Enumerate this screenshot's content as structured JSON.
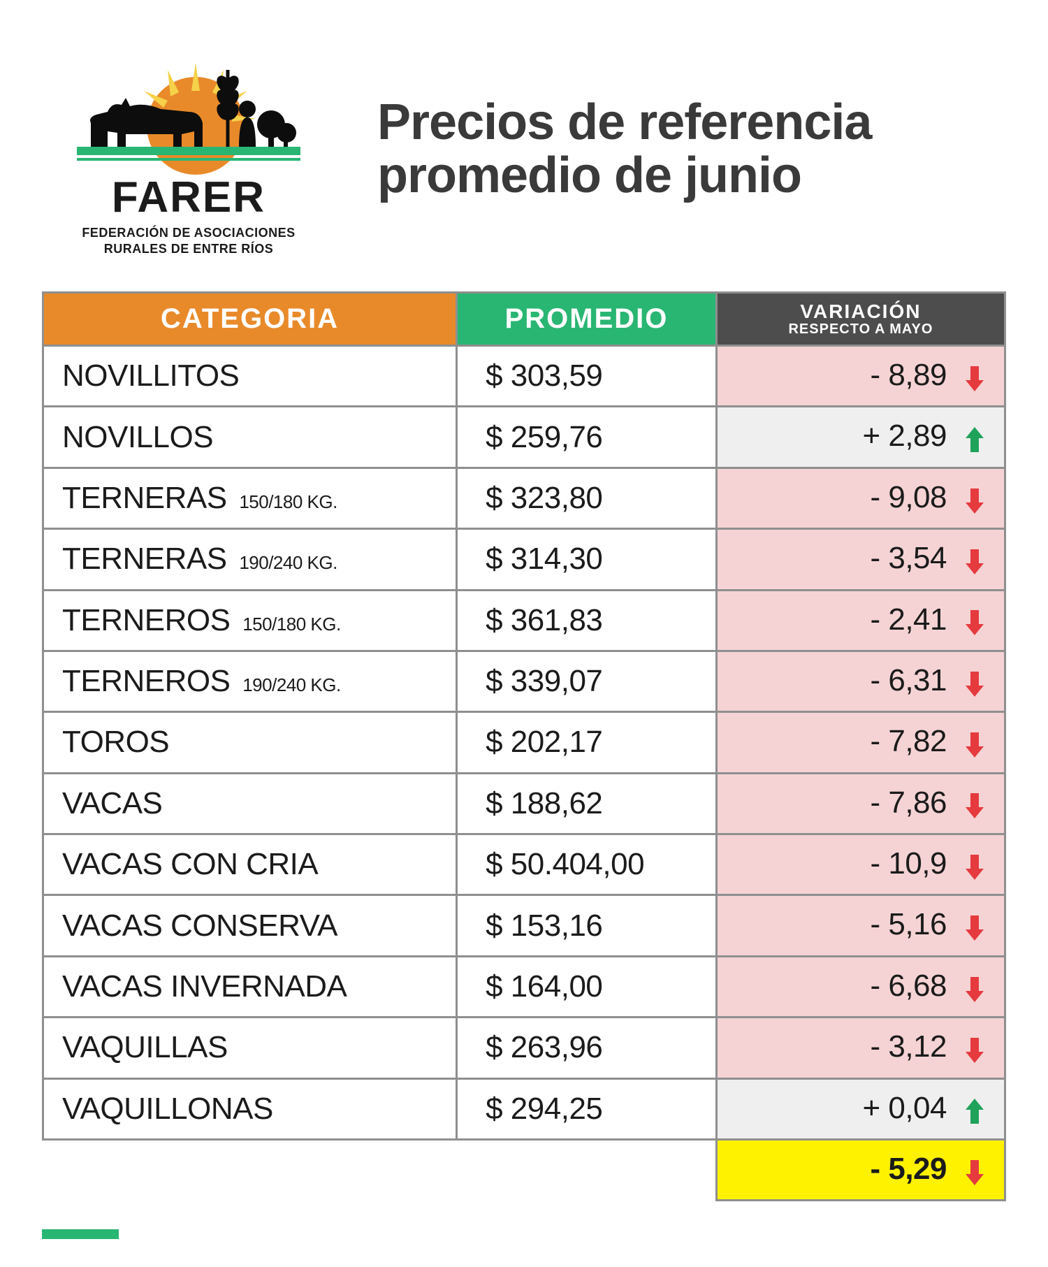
{
  "brand": {
    "name": "FARER",
    "subtitle_line1": "FEDERACIÓN DE ASOCIACIONES",
    "subtitle_line2": "RURALES DE ENTRE RÍOS",
    "colors": {
      "sun": "#e98a2a",
      "rays": "#f5d24a",
      "band_green": "#29b673",
      "silhouette": "#0d0d0d"
    }
  },
  "title": {
    "line1": "Precios de referencia",
    "line2": "promedio de junio",
    "color": "#3a3a3a",
    "fontsize": 72
  },
  "table": {
    "header": {
      "categoria": "CATEGORIA",
      "promedio": "PROMEDIO",
      "variacion": "VARIACIÓN",
      "variacion_sub": "RESPECTO A  MAYO",
      "bg_categoria": "#e98a2a",
      "bg_promedio": "#29b673",
      "bg_variacion": "#4d4d4d",
      "border_color": "#8f8f8f",
      "header_fontsize": 40
    },
    "cell": {
      "fontsize": 44,
      "sub_fontsize": 26,
      "bg_row": "#ffffff",
      "bg_var_down": "#f5d3d4",
      "bg_var_up": "#efefef",
      "bg_total": "#fff200",
      "arrow_down_color": "#e53a3e",
      "arrow_up_color": "#1fa25a"
    },
    "rows": [
      {
        "categoria": "NOVILLITOS",
        "sub": "",
        "promedio": "$ 303,59",
        "variacion": "- 8,89",
        "dir": "down"
      },
      {
        "categoria": "NOVILLOS",
        "sub": "",
        "promedio": "$ 259,76",
        "variacion": "+ 2,89",
        "dir": "up"
      },
      {
        "categoria": "TERNERAS",
        "sub": "150/180 KG.",
        "promedio": "$ 323,80",
        "variacion": "- 9,08",
        "dir": "down"
      },
      {
        "categoria": "TERNERAS",
        "sub": "190/240 KG.",
        "promedio": "$ 314,30",
        "variacion": "- 3,54",
        "dir": "down"
      },
      {
        "categoria": "TERNEROS",
        "sub": "150/180 KG.",
        "promedio": "$ 361,83",
        "variacion": "- 2,41",
        "dir": "down"
      },
      {
        "categoria": "TERNEROS",
        "sub": "190/240 KG.",
        "promedio": "$ 339,07",
        "variacion": "- 6,31",
        "dir": "down"
      },
      {
        "categoria": "TOROS",
        "sub": "",
        "promedio": "$ 202,17",
        "variacion": "- 7,82",
        "dir": "down"
      },
      {
        "categoria": "VACAS",
        "sub": "",
        "promedio": "$ 188,62",
        "variacion": "- 7,86",
        "dir": "down"
      },
      {
        "categoria": "VACAS CON CRIA",
        "sub": "",
        "promedio": "$ 50.404,00",
        "variacion": "- 10,9",
        "dir": "down"
      },
      {
        "categoria": "VACAS CONSERVA",
        "sub": "",
        "promedio": "$ 153,16",
        "variacion": "- 5,16",
        "dir": "down"
      },
      {
        "categoria": "VACAS INVERNADA",
        "sub": "",
        "promedio": "$ 164,00",
        "variacion": "- 6,68",
        "dir": "down"
      },
      {
        "categoria": "VAQUILLAS",
        "sub": "",
        "promedio": "$ 263,96",
        "variacion": "- 3,12",
        "dir": "down"
      },
      {
        "categoria": "VAQUILLONAS",
        "sub": "",
        "promedio": "$ 294,25",
        "variacion": "+ 0,04",
        "dir": "up"
      }
    ],
    "total": {
      "variacion": "- 5,29",
      "dir": "down"
    }
  }
}
